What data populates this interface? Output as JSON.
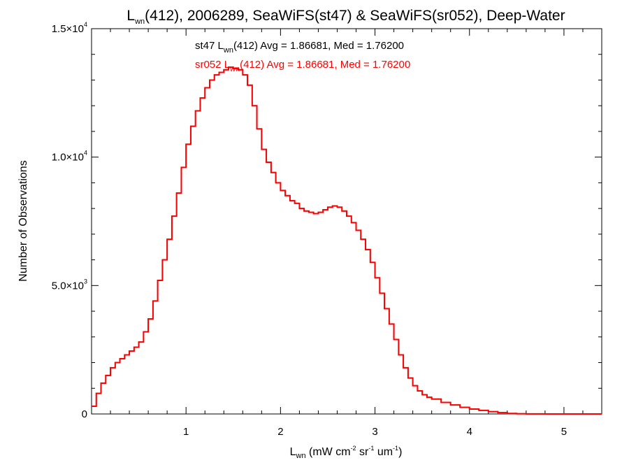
{
  "chart_data": {
    "type": "line",
    "step": true,
    "title": {
      "prefix": "L",
      "sub": "wn",
      "rest": "(412), 2006289, SeaWiFS(st47) & SeaWiFS(sr052), Deep-Water"
    },
    "xlabel": {
      "prefix": "L",
      "sub": "wn",
      "units_open": " (mW cm",
      "units_sup1": "-2",
      "units_mid1": " sr",
      "units_sup2": "-1",
      "units_mid2": " um",
      "units_sup3": "-1",
      "units_close": ")"
    },
    "ylabel": "Number of Observations",
    "xlim": [
      0,
      5.4
    ],
    "ylim": [
      0,
      15000
    ],
    "xticks": [
      {
        "value": 1,
        "label": "1"
      },
      {
        "value": 2,
        "label": "2"
      },
      {
        "value": 3,
        "label": "3"
      },
      {
        "value": 4,
        "label": "4"
      },
      {
        "value": 5,
        "label": "5"
      }
    ],
    "yticks": [
      {
        "value": 0,
        "label": "0",
        "exp": ""
      },
      {
        "value": 5000,
        "label": "5.0×10",
        "exp": "3"
      },
      {
        "value": 10000,
        "label": "1.0×10",
        "exp": "4"
      },
      {
        "value": 15000,
        "label": "1.5×10",
        "exp": "4"
      }
    ],
    "annotations": [
      {
        "color": "#000000",
        "pre": "st47 L",
        "sub": "wn",
        "post": "(412) Avg = 1.86681, Med = 1.76200"
      },
      {
        "color": "#ff0000",
        "pre": "sr052 L",
        "sub": "wn",
        "post": "(412) Avg = 1.86681, Med = 1.76200"
      }
    ],
    "series": [
      {
        "name": "st47",
        "color": "#000000",
        "x": [
          0,
          0.05,
          0.1,
          0.15,
          0.2,
          0.25,
          0.3,
          0.35,
          0.4,
          0.45,
          0.5,
          0.55,
          0.6,
          0.65,
          0.7,
          0.75,
          0.8,
          0.85,
          0.9,
          0.95,
          1.0,
          1.05,
          1.1,
          1.15,
          1.2,
          1.25,
          1.3,
          1.35,
          1.4,
          1.45,
          1.5,
          1.55,
          1.6,
          1.65,
          1.7,
          1.75,
          1.8,
          1.85,
          1.9,
          1.95,
          2.0,
          2.05,
          2.1,
          2.15,
          2.2,
          2.25,
          2.3,
          2.35,
          2.4,
          2.45,
          2.5,
          2.55,
          2.6,
          2.65,
          2.7,
          2.75,
          2.8,
          2.85,
          2.9,
          2.95,
          3.0,
          3.05,
          3.1,
          3.15,
          3.2,
          3.25,
          3.3,
          3.35,
          3.4,
          3.45,
          3.5,
          3.55,
          3.6,
          3.7,
          3.8,
          3.9,
          4.0,
          4.1,
          4.2,
          4.3,
          4.4,
          4.5,
          4.6,
          4.8,
          5.0,
          5.2,
          5.4
        ],
        "y": [
          300,
          800,
          1200,
          1500,
          1800,
          2000,
          2150,
          2300,
          2450,
          2600,
          2800,
          3200,
          3700,
          4400,
          5200,
          6000,
          6800,
          7700,
          8600,
          9600,
          10500,
          11200,
          11800,
          12300,
          12700,
          13000,
          13200,
          13300,
          13400,
          13500,
          13450,
          13400,
          13200,
          12800,
          12000,
          11100,
          10300,
          9800,
          9400,
          9000,
          8700,
          8500,
          8300,
          8200,
          8000,
          7900,
          7850,
          7800,
          7850,
          7950,
          8050,
          8100,
          8050,
          7900,
          7700,
          7450,
          7150,
          6800,
          6400,
          5900,
          5300,
          4700,
          4100,
          3500,
          2900,
          2300,
          1800,
          1400,
          1100,
          900,
          750,
          650,
          580,
          450,
          350,
          260,
          190,
          140,
          90,
          50,
          20,
          8,
          3,
          1,
          0,
          0,
          0
        ]
      },
      {
        "name": "sr052",
        "color": "#ff0000",
        "x": [
          0,
          0.05,
          0.1,
          0.15,
          0.2,
          0.25,
          0.3,
          0.35,
          0.4,
          0.45,
          0.5,
          0.55,
          0.6,
          0.65,
          0.7,
          0.75,
          0.8,
          0.85,
          0.9,
          0.95,
          1.0,
          1.05,
          1.1,
          1.15,
          1.2,
          1.25,
          1.3,
          1.35,
          1.4,
          1.45,
          1.5,
          1.55,
          1.6,
          1.65,
          1.7,
          1.75,
          1.8,
          1.85,
          1.9,
          1.95,
          2.0,
          2.05,
          2.1,
          2.15,
          2.2,
          2.25,
          2.3,
          2.35,
          2.4,
          2.45,
          2.5,
          2.55,
          2.6,
          2.65,
          2.7,
          2.75,
          2.8,
          2.85,
          2.9,
          2.95,
          3.0,
          3.05,
          3.1,
          3.15,
          3.2,
          3.25,
          3.3,
          3.35,
          3.4,
          3.45,
          3.5,
          3.55,
          3.6,
          3.7,
          3.8,
          3.9,
          4.0,
          4.1,
          4.2,
          4.3,
          4.4,
          4.5,
          4.6,
          4.8,
          5.0,
          5.2,
          5.4
        ],
        "y": [
          300,
          800,
          1200,
          1500,
          1800,
          2000,
          2150,
          2300,
          2450,
          2600,
          2800,
          3200,
          3700,
          4400,
          5200,
          6000,
          6800,
          7700,
          8600,
          9600,
          10500,
          11200,
          11800,
          12300,
          12700,
          13000,
          13200,
          13300,
          13400,
          13500,
          13450,
          13400,
          13200,
          12800,
          12000,
          11100,
          10300,
          9800,
          9400,
          9000,
          8700,
          8500,
          8300,
          8200,
          8000,
          7900,
          7850,
          7800,
          7850,
          7950,
          8050,
          8100,
          8050,
          7900,
          7700,
          7450,
          7150,
          6800,
          6400,
          5900,
          5300,
          4700,
          4100,
          3500,
          2900,
          2300,
          1800,
          1400,
          1100,
          900,
          750,
          650,
          580,
          450,
          350,
          260,
          190,
          140,
          90,
          50,
          20,
          8,
          3,
          1,
          0,
          0,
          0
        ]
      }
    ]
  }
}
